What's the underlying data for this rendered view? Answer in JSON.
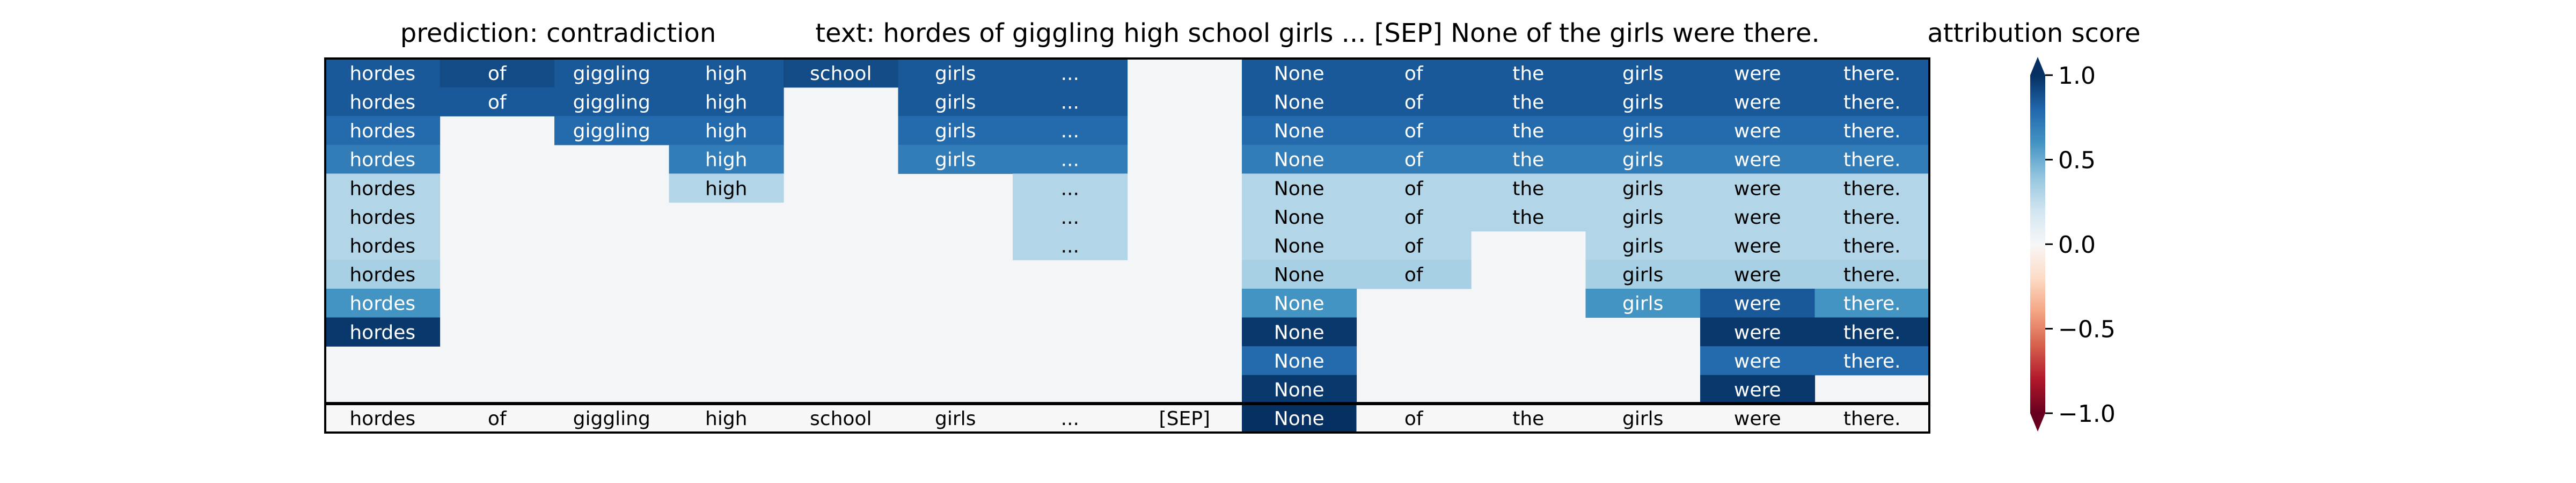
{
  "chart_data": {
    "type": "heatmap",
    "title_prediction": "prediction:  contradiction",
    "title_text": "text:  hordes of giggling high school girls ... [SEP] None of the girls were there.",
    "colorbar_label": "attribution score",
    "colorbar_ticks": [
      "1.0",
      "0.5",
      "0.0",
      "−0.5",
      "−1.0"
    ],
    "colorbar_tick_values": [
      1.0,
      0.5,
      0.0,
      -0.5,
      -1.0
    ],
    "colormap": "RdBu",
    "vlim": [
      -1,
      1
    ],
    "background_value": 0.02,
    "tokens": [
      "hordes",
      "of",
      "giggling",
      "high",
      "school",
      "girls",
      "...",
      "[SEP]",
      "None",
      "of",
      "the",
      "girls",
      "were",
      "there."
    ],
    "bottom_row_values": [
      0,
      0,
      0,
      0,
      0,
      0,
      0,
      0,
      1.0,
      0,
      0,
      0,
      0,
      0
    ],
    "rows": [
      [
        0.85,
        0.9,
        0.85,
        0.85,
        0.9,
        0.85,
        0.85,
        null,
        0.85,
        0.85,
        0.85,
        0.85,
        0.85,
        0.85
      ],
      [
        0.85,
        0.85,
        0.85,
        0.85,
        null,
        0.85,
        0.85,
        null,
        0.85,
        0.85,
        0.85,
        0.85,
        0.85,
        0.85
      ],
      [
        0.78,
        null,
        0.78,
        0.78,
        null,
        0.78,
        0.78,
        null,
        0.78,
        0.78,
        0.78,
        0.78,
        0.78,
        0.78
      ],
      [
        0.7,
        null,
        null,
        0.7,
        null,
        0.7,
        0.7,
        null,
        0.7,
        0.7,
        0.7,
        0.7,
        0.7,
        0.7
      ],
      [
        0.3,
        null,
        null,
        0.3,
        null,
        null,
        0.3,
        null,
        0.3,
        0.3,
        0.3,
        0.3,
        0.3,
        0.3
      ],
      [
        0.3,
        null,
        null,
        null,
        null,
        null,
        0.3,
        null,
        0.3,
        0.3,
        0.3,
        0.3,
        0.3,
        0.3
      ],
      [
        0.3,
        null,
        null,
        null,
        null,
        null,
        0.3,
        null,
        0.3,
        0.3,
        null,
        0.3,
        0.3,
        0.3
      ],
      [
        0.33,
        null,
        null,
        null,
        null,
        null,
        null,
        null,
        0.33,
        0.33,
        null,
        0.33,
        0.33,
        0.33
      ],
      [
        0.6,
        null,
        null,
        null,
        null,
        null,
        null,
        null,
        0.6,
        null,
        null,
        0.6,
        0.85,
        0.6
      ],
      [
        0.97,
        null,
        null,
        null,
        null,
        null,
        null,
        null,
        0.97,
        null,
        null,
        null,
        0.97,
        0.97
      ],
      [
        null,
        null,
        null,
        null,
        null,
        null,
        null,
        null,
        0.78,
        null,
        null,
        null,
        0.78,
        0.78
      ],
      [
        null,
        null,
        null,
        null,
        null,
        null,
        null,
        null,
        0.97,
        null,
        null,
        null,
        0.97,
        null
      ]
    ]
  }
}
